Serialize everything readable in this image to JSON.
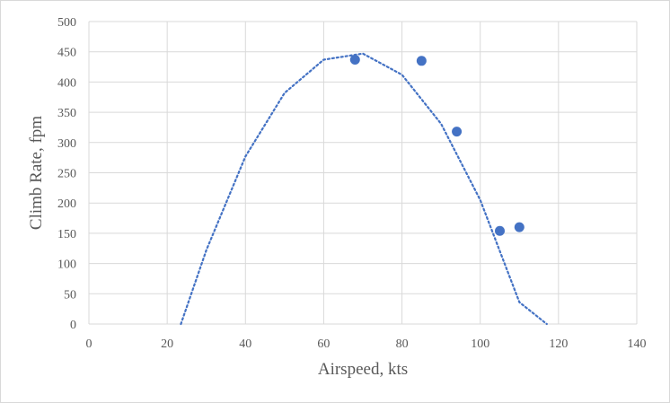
{
  "chart_data": {
    "type": "scatter",
    "xlabel": "Airspeed, kts",
    "ylabel": "Climb Rate, fpm",
    "xlim": [
      0,
      140
    ],
    "ylim": [
      0,
      500
    ],
    "x_ticks": [
      0,
      20,
      40,
      60,
      80,
      100,
      120,
      140
    ],
    "y_ticks": [
      0,
      50,
      100,
      150,
      200,
      250,
      300,
      350,
      400,
      450,
      500
    ],
    "grid": true,
    "legend": "none",
    "series": [
      {
        "type": "scatter",
        "x": [
          68,
          85,
          94,
          105,
          110
        ],
        "y": [
          437,
          435,
          318,
          154,
          160
        ],
        "color": "#4472C4"
      }
    ],
    "trendline": {
      "type": "polynomial",
      "order": 2,
      "style": "dotted",
      "color": "#4472C4",
      "x": [
        23.5,
        30,
        40,
        50,
        60,
        70,
        80,
        90,
        100,
        110,
        117
      ],
      "y": [
        0,
        122,
        277,
        382,
        437,
        447,
        412,
        331,
        205,
        36,
        0
      ]
    }
  }
}
